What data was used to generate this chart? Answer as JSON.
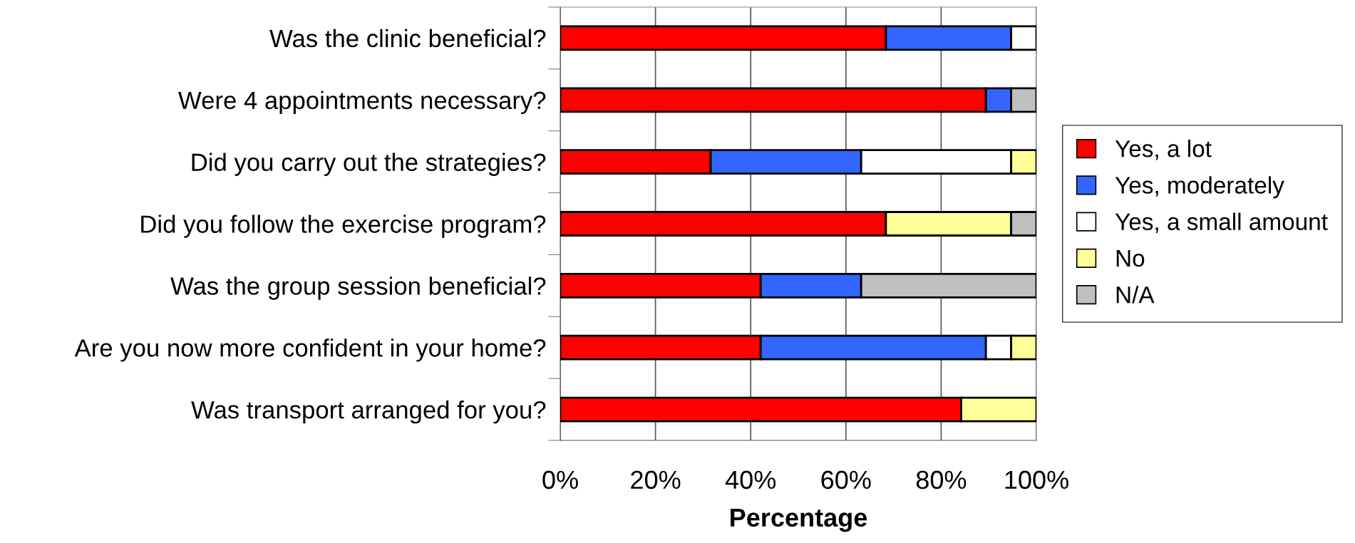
{
  "chart_data": {
    "type": "bar",
    "orientation": "horizontal",
    "stacked": true,
    "categories": [
      "Was the clinic beneficial?",
      "Were 4 appointments necessary?",
      "Did you carry out the strategies?",
      "Did you follow the exercise program?",
      "Was the group session beneficial?",
      "Are you now more confident in your home?",
      "Was transport arranged for you?"
    ],
    "series": [
      {
        "name": "Yes, a lot",
        "color": "#ff0000",
        "values": [
          68.4,
          89.4,
          31.6,
          68.4,
          42.1,
          42.1,
          84.2
        ]
      },
      {
        "name": "Yes, moderately",
        "color": "#3366ff",
        "values": [
          26.3,
          5.3,
          31.6,
          null,
          21.1,
          47.3,
          null
        ]
      },
      {
        "name": "Yes, a small amount",
        "color": "#ffffff",
        "values": [
          5.3,
          null,
          31.5,
          null,
          null,
          5.3,
          null
        ]
      },
      {
        "name": "No",
        "color": "#ffff99",
        "values": [
          null,
          null,
          5.3,
          26.3,
          null,
          5.3,
          15.8
        ]
      },
      {
        "name": "N/A",
        "color": "#c0c0c0",
        "values": [
          null,
          5.3,
          null,
          5.3,
          36.8,
          null,
          null
        ]
      }
    ],
    "xlabel": "Percentage",
    "xlim": [
      0,
      100
    ],
    "xticks": [
      {
        "value": 0,
        "label": "0%"
      },
      {
        "value": 20,
        "label": "20%"
      },
      {
        "value": 40,
        "label": "40%"
      },
      {
        "value": 60,
        "label": "60%"
      },
      {
        "value": 80,
        "label": "80%"
      },
      {
        "value": 100,
        "label": "100%"
      }
    ],
    "grid": "x",
    "legend": "right"
  }
}
